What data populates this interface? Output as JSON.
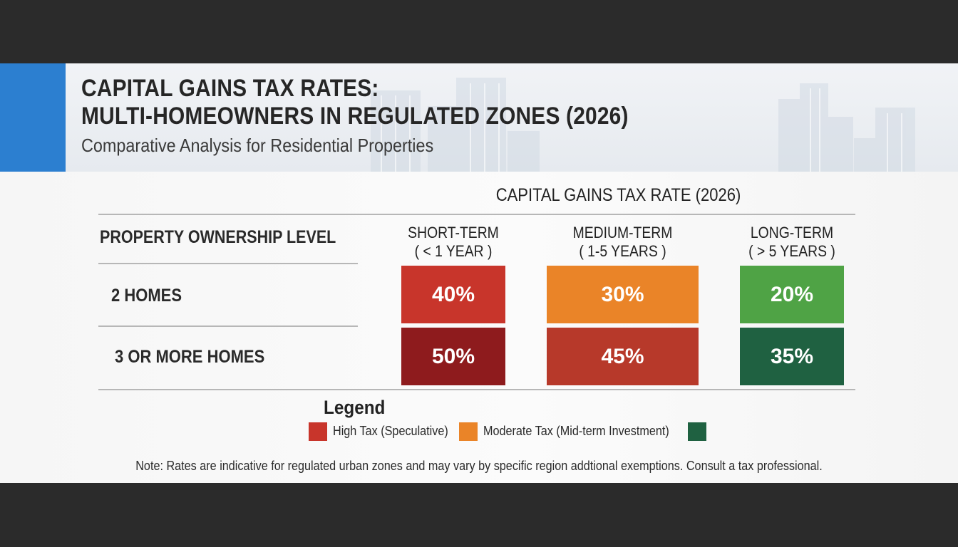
{
  "header": {
    "title_line1": "CAPITAL GAINS TAX RATES:",
    "title_line2": "MULTI-HOMEOWNERS IN REGULATED ZONES (2026)",
    "subtitle": "Comparative Analysis for Residential Properties"
  },
  "chart_data": {
    "type": "table",
    "title": "CAPITAL GAINS TAX RATE (2026)",
    "row_header": "PROPERTY OWNERSHIP LEVEL",
    "columns": [
      {
        "line1": "SHORT-TERM",
        "line2": "( < 1 YEAR )"
      },
      {
        "line1": "MEDIUM-TERM",
        "line2": "( 1-5 YEARS )"
      },
      {
        "line1": "LONG-TERM",
        "line2": "( > 5 YEARS )"
      }
    ],
    "rows": [
      {
        "label": "2 HOMES",
        "values": [
          40,
          30,
          20
        ],
        "display": [
          "40%",
          "30%",
          "20%"
        ],
        "colors": [
          "#c8352b",
          "#ea8428",
          "#4fa345"
        ]
      },
      {
        "label": "3 OR MORE HOMES",
        "values": [
          50,
          45,
          35
        ],
        "display": [
          "50%",
          "45%",
          "35%"
        ],
        "colors": [
          "#8e1b1d",
          "#b7392a",
          "#1f6141"
        ]
      }
    ],
    "legend": [
      {
        "label": "High Tax (Speculative)",
        "color": "#c8352b"
      },
      {
        "label": "Moderate Tax (Mid-term Investment)",
        "color": "#ea8428"
      },
      {
        "label": "",
        "color": "#1f6141"
      }
    ],
    "legend_title": "Legend"
  },
  "note": "Note: Rates are indicative for regulated urban zones and may vary by specific region addtional exemptions. Consult a tax professional.",
  "colors": {
    "accent": "#2c7fd0",
    "high": "#c8352b",
    "moderate": "#ea8428",
    "low": "#4fa345"
  }
}
